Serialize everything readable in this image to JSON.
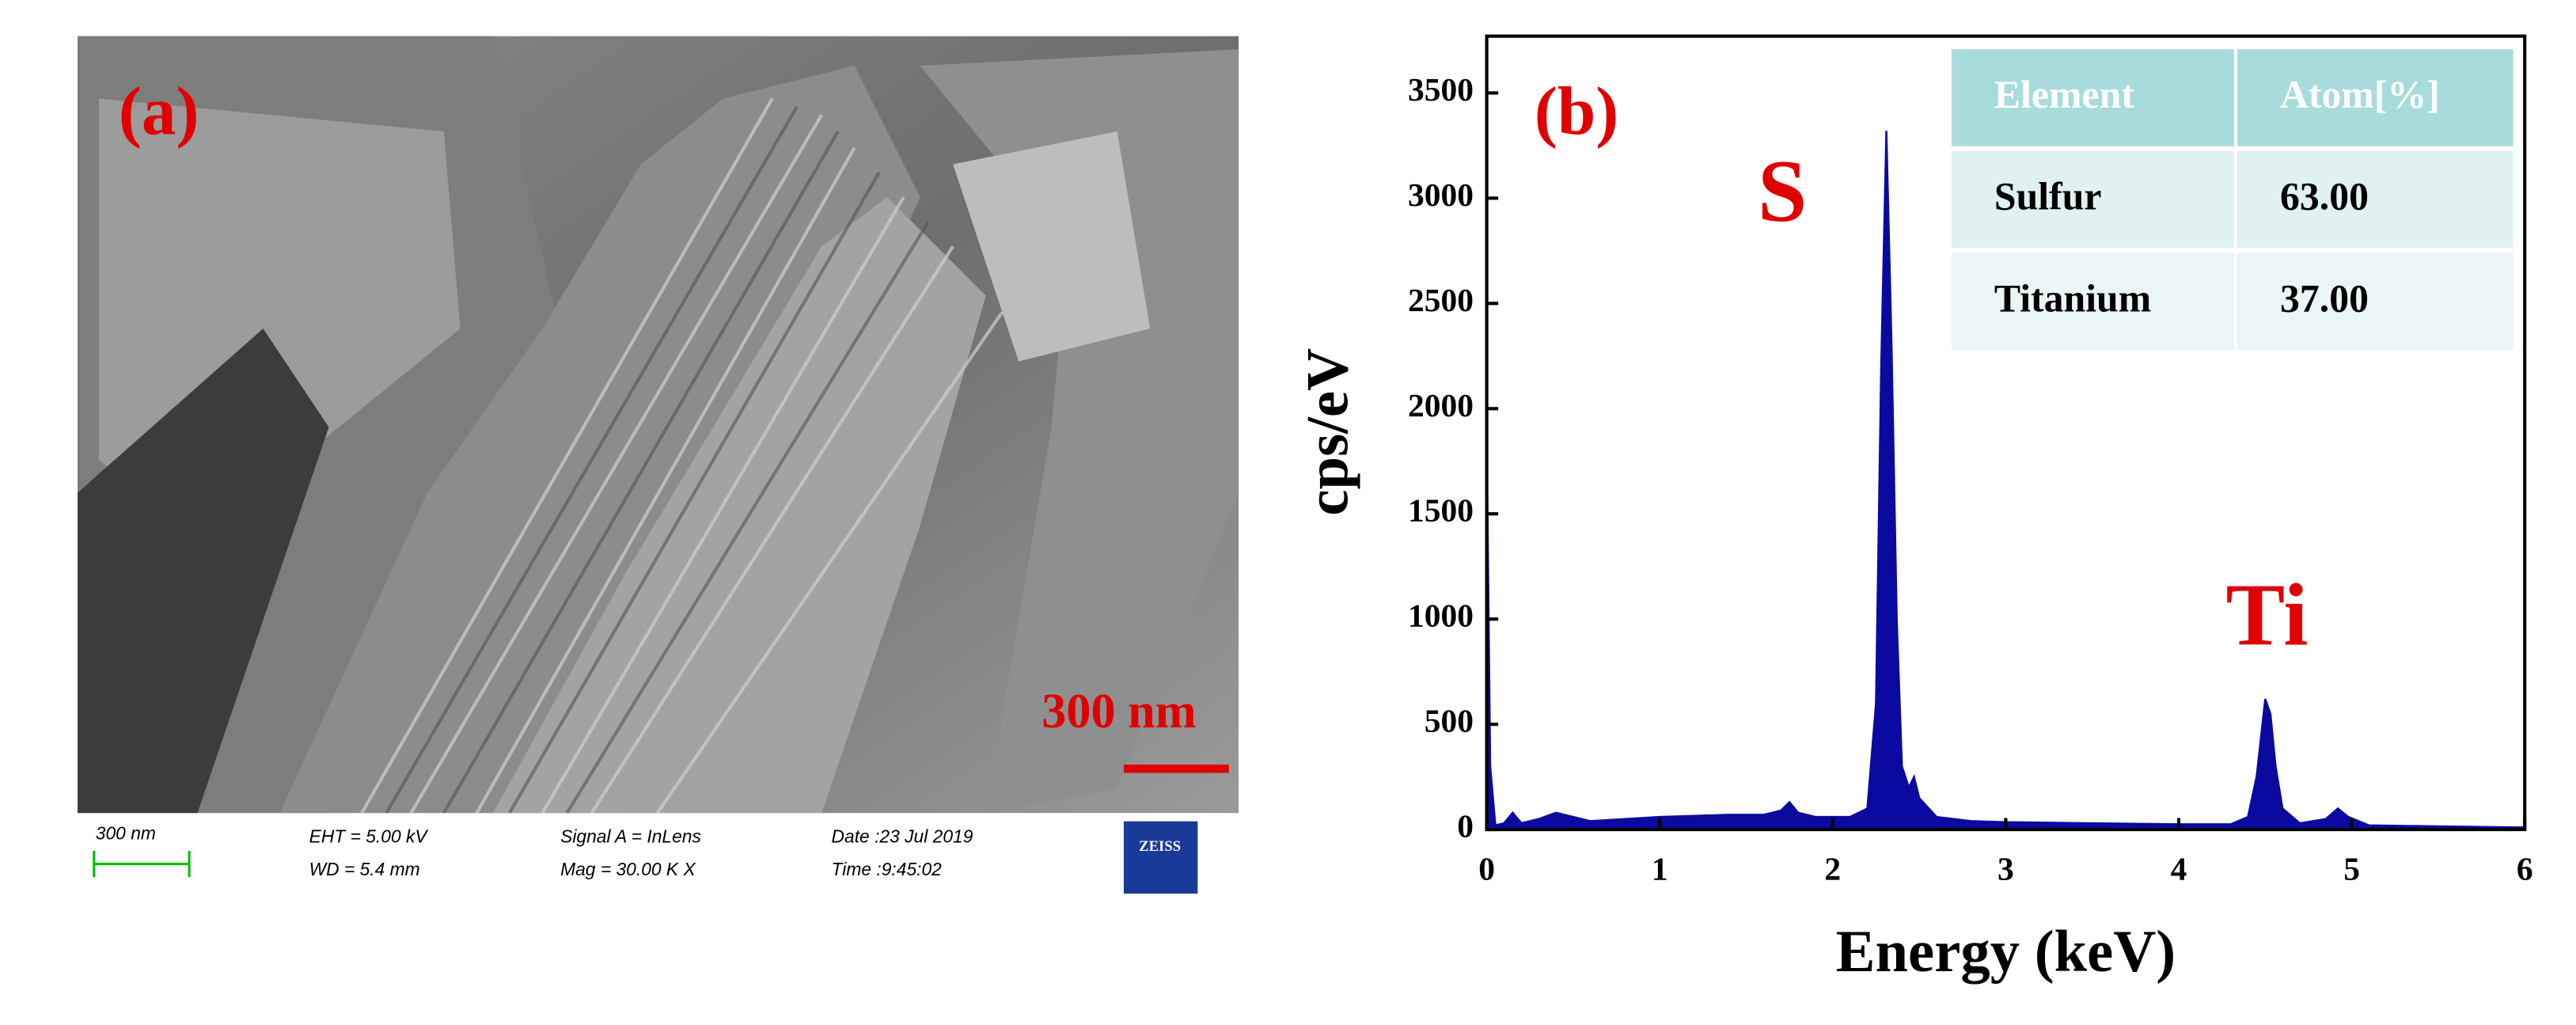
{
  "sem_panel": {
    "panel_label": "(a)",
    "scale_label": "300 nm",
    "info": {
      "scale": "300 nm",
      "eht": "EHT =  5.00 kV",
      "wd": "WD =  5.4 mm",
      "signal": "Signal A = InLens",
      "mag": "Mag =   30.00 K X",
      "date": "Date :23 Jul 2019",
      "time": "Time :9:45:02",
      "logo": "ZEISS"
    }
  },
  "chart_data": {
    "type": "area",
    "panel_label": "(b)",
    "peak_labels": [
      "S",
      "Ti"
    ],
    "x_label": "Energy (keV)",
    "y_label": "cps/eV",
    "xlim": [
      0,
      6
    ],
    "xticks": [
      0,
      1,
      2,
      3,
      4,
      5,
      6
    ],
    "ylim": [
      0,
      3770
    ],
    "yticks": [
      0,
      500,
      1000,
      1500,
      2000,
      2500,
      3000,
      3500
    ],
    "x": [
      0,
      0.02,
      0.05,
      0.1,
      0.15,
      0.2,
      0.3,
      0.4,
      0.5,
      0.6,
      0.8,
      1.0,
      1.2,
      1.4,
      1.6,
      1.7,
      1.75,
      1.8,
      1.9,
      2.1,
      2.2,
      2.25,
      2.28,
      2.31,
      2.34,
      2.37,
      2.4,
      2.44,
      2.47,
      2.5,
      2.6,
      2.8,
      3.0,
      3.5,
      4.0,
      4.3,
      4.4,
      4.45,
      4.5,
      4.53,
      4.56,
      4.6,
      4.7,
      4.85,
      4.92,
      4.98,
      5.1,
      5.5,
      6.0
    ],
    "series": [
      {
        "color": "#0a0aa0",
        "values": [
          1850,
          300,
          20,
          30,
          80,
          30,
          50,
          80,
          60,
          40,
          50,
          60,
          65,
          70,
          70,
          90,
          130,
          80,
          60,
          60,
          100,
          600,
          2200,
          3320,
          2300,
          1000,
          300,
          200,
          250,
          150,
          60,
          40,
          35,
          30,
          25,
          25,
          60,
          250,
          620,
          550,
          300,
          100,
          30,
          50,
          100,
          60,
          20,
          15,
          10
        ]
      }
    ],
    "table": {
      "columns": [
        "Element",
        "Atom[%]"
      ],
      "rows": [
        [
          "Sulfur",
          "63.00"
        ],
        [
          "Titanium",
          "37.00"
        ]
      ]
    }
  }
}
